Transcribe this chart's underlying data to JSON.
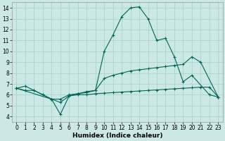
{
  "xlabel": "Humidex (Indice chaleur)",
  "background_color": "#cce8e4",
  "grid_color": "#aad4ce",
  "line_color": "#006655",
  "xlim": [
    -0.5,
    23.5
  ],
  "ylim": [
    3.5,
    14.5
  ],
  "yticks": [
    4,
    5,
    6,
    7,
    8,
    9,
    10,
    11,
    12,
    13,
    14
  ],
  "xticks": [
    0,
    1,
    2,
    3,
    4,
    5,
    6,
    7,
    8,
    9,
    10,
    11,
    12,
    13,
    14,
    15,
    16,
    17,
    18,
    19,
    20,
    21,
    22,
    23
  ],
  "s1x": [
    0,
    1,
    2,
    3,
    4,
    5,
    6,
    7,
    8,
    9,
    10,
    11,
    12,
    13,
    14,
    15,
    16,
    17,
    18,
    19,
    20,
    22,
    23
  ],
  "s1y": [
    6.6,
    6.8,
    6.4,
    6.0,
    5.6,
    5.6,
    6.0,
    6.1,
    6.3,
    6.4,
    10.0,
    11.5,
    13.2,
    14.0,
    14.1,
    13.0,
    11.0,
    11.2,
    9.5,
    7.2,
    7.8,
    6.0,
    5.8
  ],
  "s2x": [
    0,
    1,
    2,
    3,
    4,
    5,
    6,
    7,
    8,
    9,
    10,
    11,
    12,
    13,
    14,
    15,
    16,
    17,
    18,
    19,
    20,
    21,
    23
  ],
  "s2y": [
    6.6,
    6.4,
    6.4,
    6.0,
    5.6,
    4.2,
    5.9,
    6.1,
    6.2,
    6.4,
    7.5,
    7.8,
    8.0,
    8.2,
    8.3,
    8.4,
    8.5,
    8.6,
    8.7,
    8.8,
    9.5,
    9.0,
    5.8
  ],
  "s3x": [
    0,
    4,
    5,
    6,
    7,
    8,
    9,
    10,
    11,
    12,
    13,
    14,
    15,
    16,
    17,
    18,
    19,
    20,
    21,
    22,
    23
  ],
  "s3y": [
    6.6,
    5.6,
    5.3,
    5.9,
    6.0,
    6.0,
    6.1,
    6.15,
    6.2,
    6.25,
    6.3,
    6.35,
    6.4,
    6.45,
    6.5,
    6.55,
    6.6,
    6.65,
    6.7,
    6.7,
    5.8
  ],
  "xlabel_fontsize": 6.5,
  "tick_fontsize": 5.5
}
